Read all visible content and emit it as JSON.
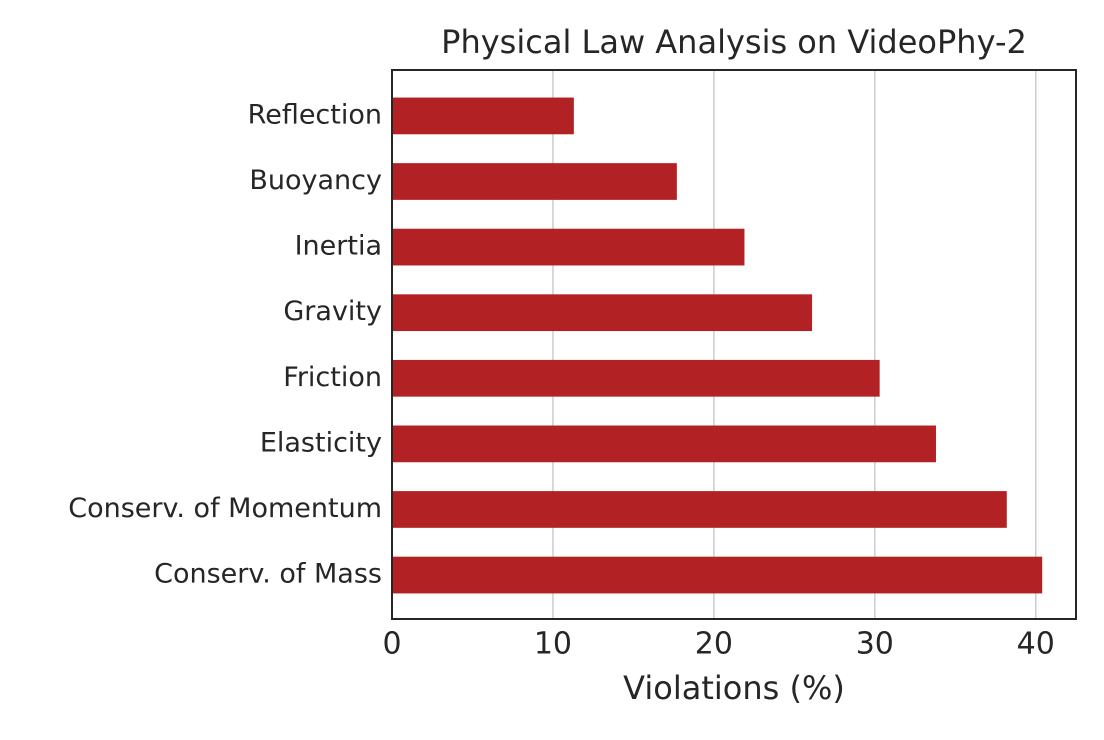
{
  "chart_data": {
    "type": "barh",
    "title": "Physical Law Analysis on VideoPhy-2",
    "x_label": "Violations (%)",
    "categories": [
      "Reflection",
      "Buoyancy",
      "Inertia",
      "Gravity",
      "Friction",
      "Elasticity",
      "Conserv. of Momentum",
      "Conserv. of Mass"
    ],
    "values": [
      11.3,
      17.7,
      21.9,
      26.1,
      30.3,
      33.8,
      38.2,
      40.4
    ],
    "color": "#b22225",
    "xlim": [
      0,
      42.5
    ],
    "xticks": [
      0,
      10,
      20,
      30,
      40
    ],
    "grid": true
  }
}
